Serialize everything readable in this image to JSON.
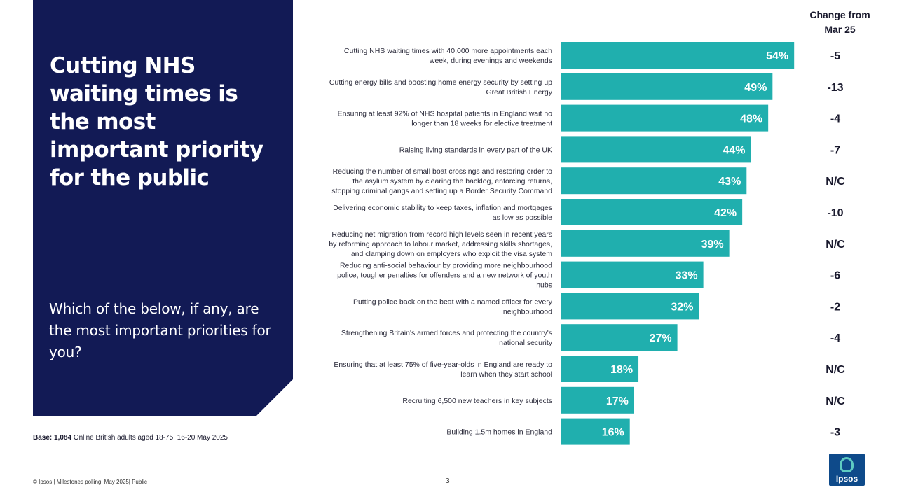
{
  "headline": "Cutting NHS waiting times is the most important priority for the public",
  "question": "Which of the below, if any, are the most important priorities for you?",
  "base": {
    "label": "Base: 1,084",
    "text": " Online British adults aged 18-75, 16-20 May 2025"
  },
  "footer": {
    "copyright": "© Ipsos | Milestones polling| May 2025| Public",
    "page": "3"
  },
  "logo": {
    "text": "Ipsos"
  },
  "colors": {
    "panel": "#121a55",
    "bar": "#20afae",
    "logo": "#0e4a8a"
  },
  "change_header": {
    "line1": "Change from",
    "line2": "Mar 25"
  },
  "chart_data": {
    "type": "bar",
    "orientation": "horizontal",
    "title": "Which of the below, if any, are the most important priorities for you?",
    "xlim": [
      0,
      100
    ],
    "unit": "%",
    "categories": [
      [
        "Cutting NHS waiting times with 40,000 more appointments each",
        "week, during evenings and weekends"
      ],
      [
        "Cutting energy bills and boosting home energy security by setting up",
        "Great British Energy"
      ],
      [
        "Ensuring at least 92% of NHS hospital patients in England wait no",
        "longer than 18 weeks for elective treatment"
      ],
      [
        "Raising living standards in every part of the UK"
      ],
      [
        "Reducing the number of small boat crossings and restoring order to",
        "the asylum system by clearing the backlog, enforcing returns,",
        "stopping criminal gangs and setting up a Border Security Command"
      ],
      [
        "Delivering economic stability to keep taxes, inflation and mortgages",
        "as low as possible"
      ],
      [
        "Reducing net migration from record high levels seen in recent years",
        "by reforming approach to labour market, addressing skills shortages,",
        "and clamping down on employers who exploit the visa system"
      ],
      [
        "Reducing anti-social behaviour by providing more neighbourhood",
        "police, tougher penalties for offenders and a new network of youth",
        "hubs"
      ],
      [
        "Putting police back on the beat with a named officer for every",
        "neighbourhood"
      ],
      [
        "Strengthening Britain's armed forces and protecting the country's",
        "national security"
      ],
      [
        "Ensuring that at least 75% of five-year-olds in England are ready to",
        "learn when they start school"
      ],
      [
        "Recruiting 6,500 new teachers in key subjects"
      ],
      [
        "Building 1.5m homes in England"
      ]
    ],
    "values": [
      54,
      49,
      48,
      44,
      43,
      42,
      39,
      33,
      32,
      27,
      18,
      17,
      16
    ],
    "change": [
      "-5",
      "-13",
      "-4",
      "-7",
      "N/C",
      "-10",
      "N/C",
      "-6",
      "-2",
      "-4",
      "N/C",
      "N/C",
      "-3"
    ],
    "change_label": "Change from Mar 25"
  }
}
